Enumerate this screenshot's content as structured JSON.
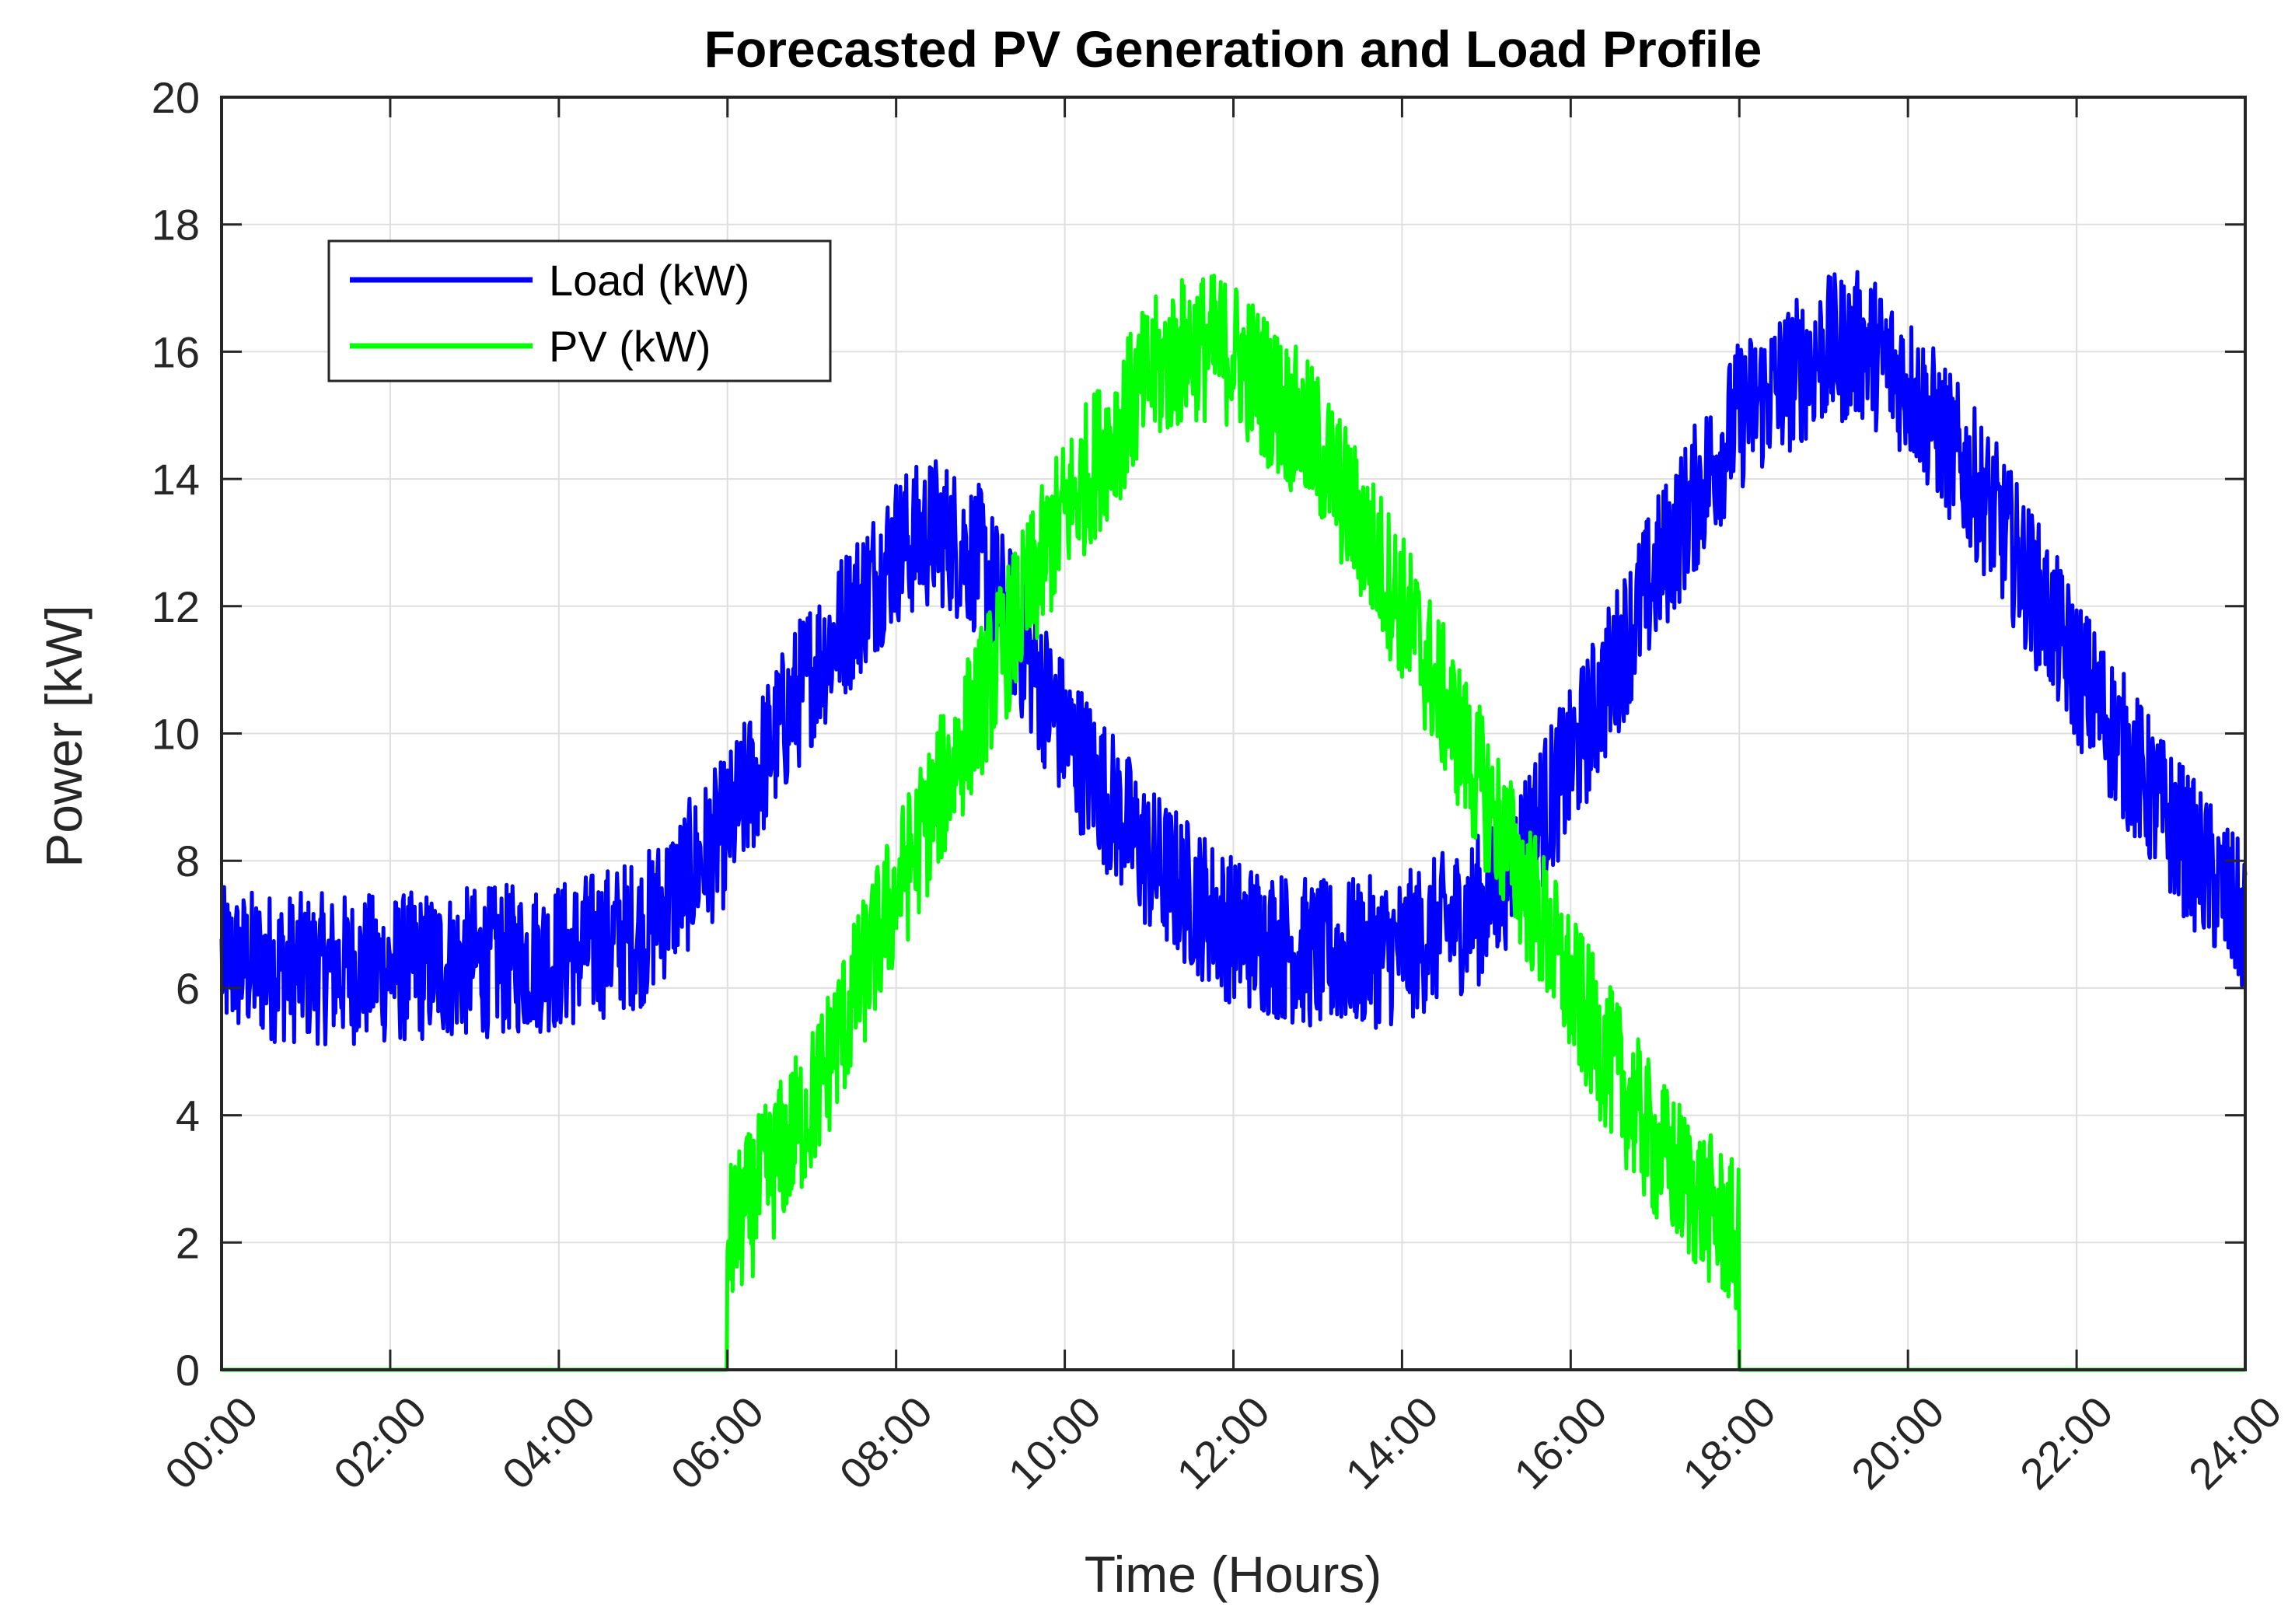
{
  "chart_data": {
    "type": "line",
    "title": "Forecasted PV Generation and Load Profile",
    "xlabel": "Time (Hours)",
    "ylabel": "Power [kW]",
    "xlim": [
      0,
      24
    ],
    "ylim": [
      0,
      20
    ],
    "grid": true,
    "legend_position": "top-left",
    "x_ticks": [
      0,
      2,
      4,
      6,
      8,
      10,
      12,
      14,
      16,
      18,
      20,
      22,
      24
    ],
    "x_tick_labels": [
      "00:00",
      "02:00",
      "04:00",
      "06:00",
      "08:00",
      "10:00",
      "12:00",
      "14:00",
      "16:00",
      "18:00",
      "20:00",
      "22:00",
      "24:00"
    ],
    "y_ticks": [
      0,
      2,
      4,
      6,
      8,
      10,
      12,
      14,
      16,
      18,
      20
    ],
    "y_tick_labels": [
      "0",
      "2",
      "4",
      "6",
      "8",
      "10",
      "12",
      "14",
      "16",
      "18",
      "20"
    ],
    "noise_amplitude_kw": 1.2,
    "series": [
      {
        "name": "Load (kW)",
        "color": "#0000ff",
        "x": [
          0,
          1,
          2,
          3,
          4,
          5,
          6,
          7,
          8,
          8.5,
          9,
          10,
          11,
          12,
          13,
          14,
          15,
          16,
          17,
          18,
          19,
          19.5,
          20,
          21,
          22,
          23,
          24
        ],
        "values": [
          6.4,
          6.3,
          6.3,
          6.4,
          6.5,
          6.9,
          8.5,
          11.0,
          12.9,
          13.2,
          12.7,
          10.0,
          8.0,
          6.9,
          6.5,
          6.6,
          7.3,
          9.5,
          12.5,
          15.0,
          16.0,
          16.1,
          15.5,
          13.5,
          11.0,
          8.8,
          7.0
        ]
      },
      {
        "name": "PV (kW)",
        "color": "#00ff00",
        "x": [
          0,
          5.99,
          6,
          7,
          8,
          9,
          10,
          11,
          11.5,
          12,
          13,
          14,
          15,
          16,
          17,
          17.99,
          18,
          24
        ],
        "values": [
          0,
          0,
          2.0,
          4.2,
          7.5,
          10.5,
          13.5,
          15.6,
          16.1,
          16.0,
          14.5,
          12.0,
          9.0,
          6.0,
          3.5,
          2.0,
          0,
          0
        ]
      }
    ]
  }
}
